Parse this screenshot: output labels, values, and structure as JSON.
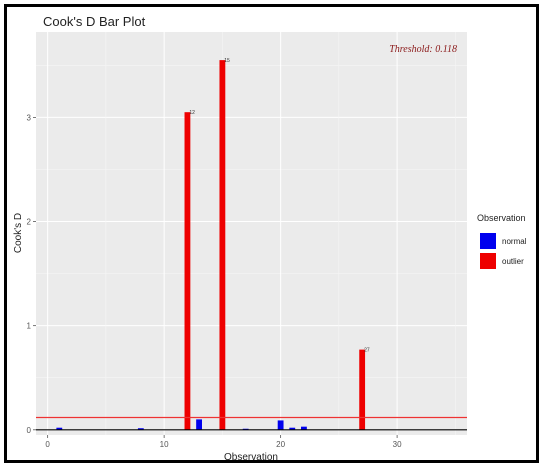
{
  "chart_data": {
    "type": "bar",
    "title": "Cook's D Bar Plot",
    "xlabel": "Observation",
    "ylabel": "Cook's D",
    "threshold_label": "Threshold: 0.118",
    "threshold": 0.118,
    "xlim": [
      -1,
      36
    ],
    "ylim": [
      -0.05,
      3.82
    ],
    "x_ticks": [
      0,
      10,
      20,
      30
    ],
    "y_ticks": [
      0,
      1,
      2,
      3
    ],
    "grid": true,
    "legend_title": "Observation",
    "legend_position": "right",
    "legend": [
      {
        "name": "normal",
        "color": "#0000ee"
      },
      {
        "name": "outlier",
        "color": "#ee0000"
      }
    ],
    "bars": [
      {
        "x": 1,
        "value": 0.02,
        "group": "normal"
      },
      {
        "x": 8,
        "value": 0.015,
        "group": "normal"
      },
      {
        "x": 12,
        "value": 3.05,
        "group": "outlier",
        "label": "12"
      },
      {
        "x": 13,
        "value": 0.1,
        "group": "normal"
      },
      {
        "x": 15,
        "value": 3.55,
        "group": "outlier",
        "label": "15"
      },
      {
        "x": 17,
        "value": 0.01,
        "group": "normal"
      },
      {
        "x": 20,
        "value": 0.09,
        "group": "normal"
      },
      {
        "x": 21,
        "value": 0.02,
        "group": "normal"
      },
      {
        "x": 22,
        "value": 0.03,
        "group": "normal"
      },
      {
        "x": 27,
        "value": 0.77,
        "group": "outlier",
        "label": "27"
      }
    ]
  }
}
